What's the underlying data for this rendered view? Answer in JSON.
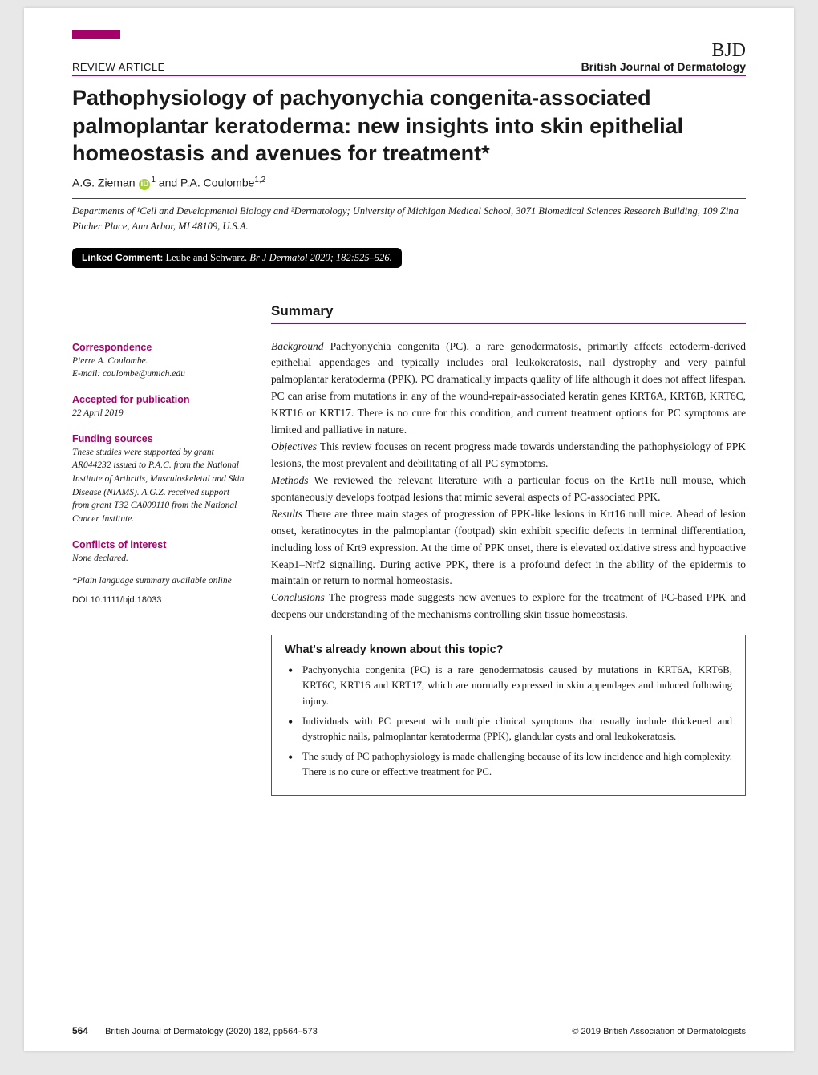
{
  "colors": {
    "accent": "#a6006b",
    "text": "#1a1a1a",
    "page_bg": "#ffffff",
    "outer_bg": "#e8e8e8",
    "pill_bg": "#000000",
    "pill_text": "#ffffff",
    "orcid_bg": "#a6ce39",
    "box_border": "#555555"
  },
  "typography": {
    "title_font": "Verdana, Arial, sans-serif",
    "body_font": "Georgia, 'Times New Roman', serif",
    "title_size_pt": 20,
    "body_size_pt": 10,
    "sidebar_size_pt": 8.5
  },
  "header": {
    "article_type": "REVIEW ARTICLE",
    "journal_abbrev": "BJD",
    "journal_full": "British Journal of Dermatology"
  },
  "title": "Pathophysiology of pachyonychia congenita-associated palmoplantar keratoderma: new insights into skin epithelial homeostasis and avenues for treatment*",
  "authors_html": "A.G. Zieman <span class='orcid' data-name='orcid-icon' data-interactable='true'>iD</span><span class='sup'>1</span> and P.A. Coulombe<span class='sup'>1,2</span>",
  "affiliations": "Departments of ¹Cell and Developmental Biology and ²Dermatology; University of Michigan Medical School, 3071 Biomedical Sciences Research Building, 109 Zina Pitcher Place, Ann Arbor, MI 48109, U.S.A.",
  "linked_comment": {
    "label": "Linked Comment:",
    "text": "Leube and Schwarz.",
    "ref": "Br J Dermatol 2020; 182:525–526."
  },
  "sidebar": {
    "correspondence": {
      "heading": "Correspondence",
      "name": "Pierre A. Coulombe.",
      "email": "E-mail: coulombe@umich.edu"
    },
    "accepted": {
      "heading": "Accepted for publication",
      "date": "22 April 2019"
    },
    "funding": {
      "heading": "Funding sources",
      "text": "These studies were supported by grant AR044232 issued to P.A.C. from the National Institute of Arthritis, Musculoskeletal and Skin Disease (NIAMS). A.G.Z. received support from grant T32 CA009110 from the National Cancer Institute."
    },
    "conflicts": {
      "heading": "Conflicts of interest",
      "text": "None declared."
    },
    "note": "*Plain language summary available online",
    "doi": "DOI 10.1111/bjd.18033"
  },
  "summary": {
    "heading": "Summary",
    "sections": [
      {
        "label": "Background",
        "text": "Pachyonychia congenita (PC), a rare genodermatosis, primarily affects ectoderm-derived epithelial appendages and typically includes oral leukokeratosis, nail dystrophy and very painful palmoplantar keratoderma (PPK). PC dramatically impacts quality of life although it does not affect lifespan. PC can arise from mutations in any of the wound-repair-associated keratin genes KRT6A, KRT6B, KRT6C, KRT16 or KRT17. There is no cure for this condition, and current treatment options for PC symptoms are limited and palliative in nature."
      },
      {
        "label": "Objectives",
        "text": "This review focuses on recent progress made towards understanding the pathophysiology of PPK lesions, the most prevalent and debilitating of all PC symptoms."
      },
      {
        "label": "Methods",
        "text": "We reviewed the relevant literature with a particular focus on the Krt16 null mouse, which spontaneously develops footpad lesions that mimic several aspects of PC-associated PPK."
      },
      {
        "label": "Results",
        "text": "There are three main stages of progression of PPK-like lesions in Krt16 null mice. Ahead of lesion onset, keratinocytes in the palmoplantar (footpad) skin exhibit specific defects in terminal differentiation, including loss of Krt9 expression. At the time of PPK onset, there is elevated oxidative stress and hypoactive Keap1–Nrf2 signalling. During active PPK, there is a profound defect in the ability of the epidermis to maintain or return to normal homeostasis."
      },
      {
        "label": "Conclusions",
        "text": "The progress made suggests new avenues to explore for the treatment of PC-based PPK and deepens our understanding of the mechanisms controlling skin tissue homeostasis."
      }
    ]
  },
  "known_box": {
    "heading": "What's already known about this topic?",
    "items": [
      "Pachyonychia congenita (PC) is a rare genodermatosis caused by mutations in KRT6A, KRT6B, KRT6C, KRT16 and KRT17, which are normally expressed in skin appendages and induced following injury.",
      "Individuals with PC present with multiple clinical symptoms that usually include thickened and dystrophic nails, palmoplantar keratoderma (PPK), glandular cysts and oral leukokeratosis.",
      "The study of PC pathophysiology is made challenging because of its low incidence and high complexity. There is no cure or effective treatment for PC."
    ]
  },
  "footer": {
    "page": "564",
    "citation": "British Journal of Dermatology (2020) 182, pp564–573",
    "copyright": "© 2019 British Association of Dermatologists"
  }
}
